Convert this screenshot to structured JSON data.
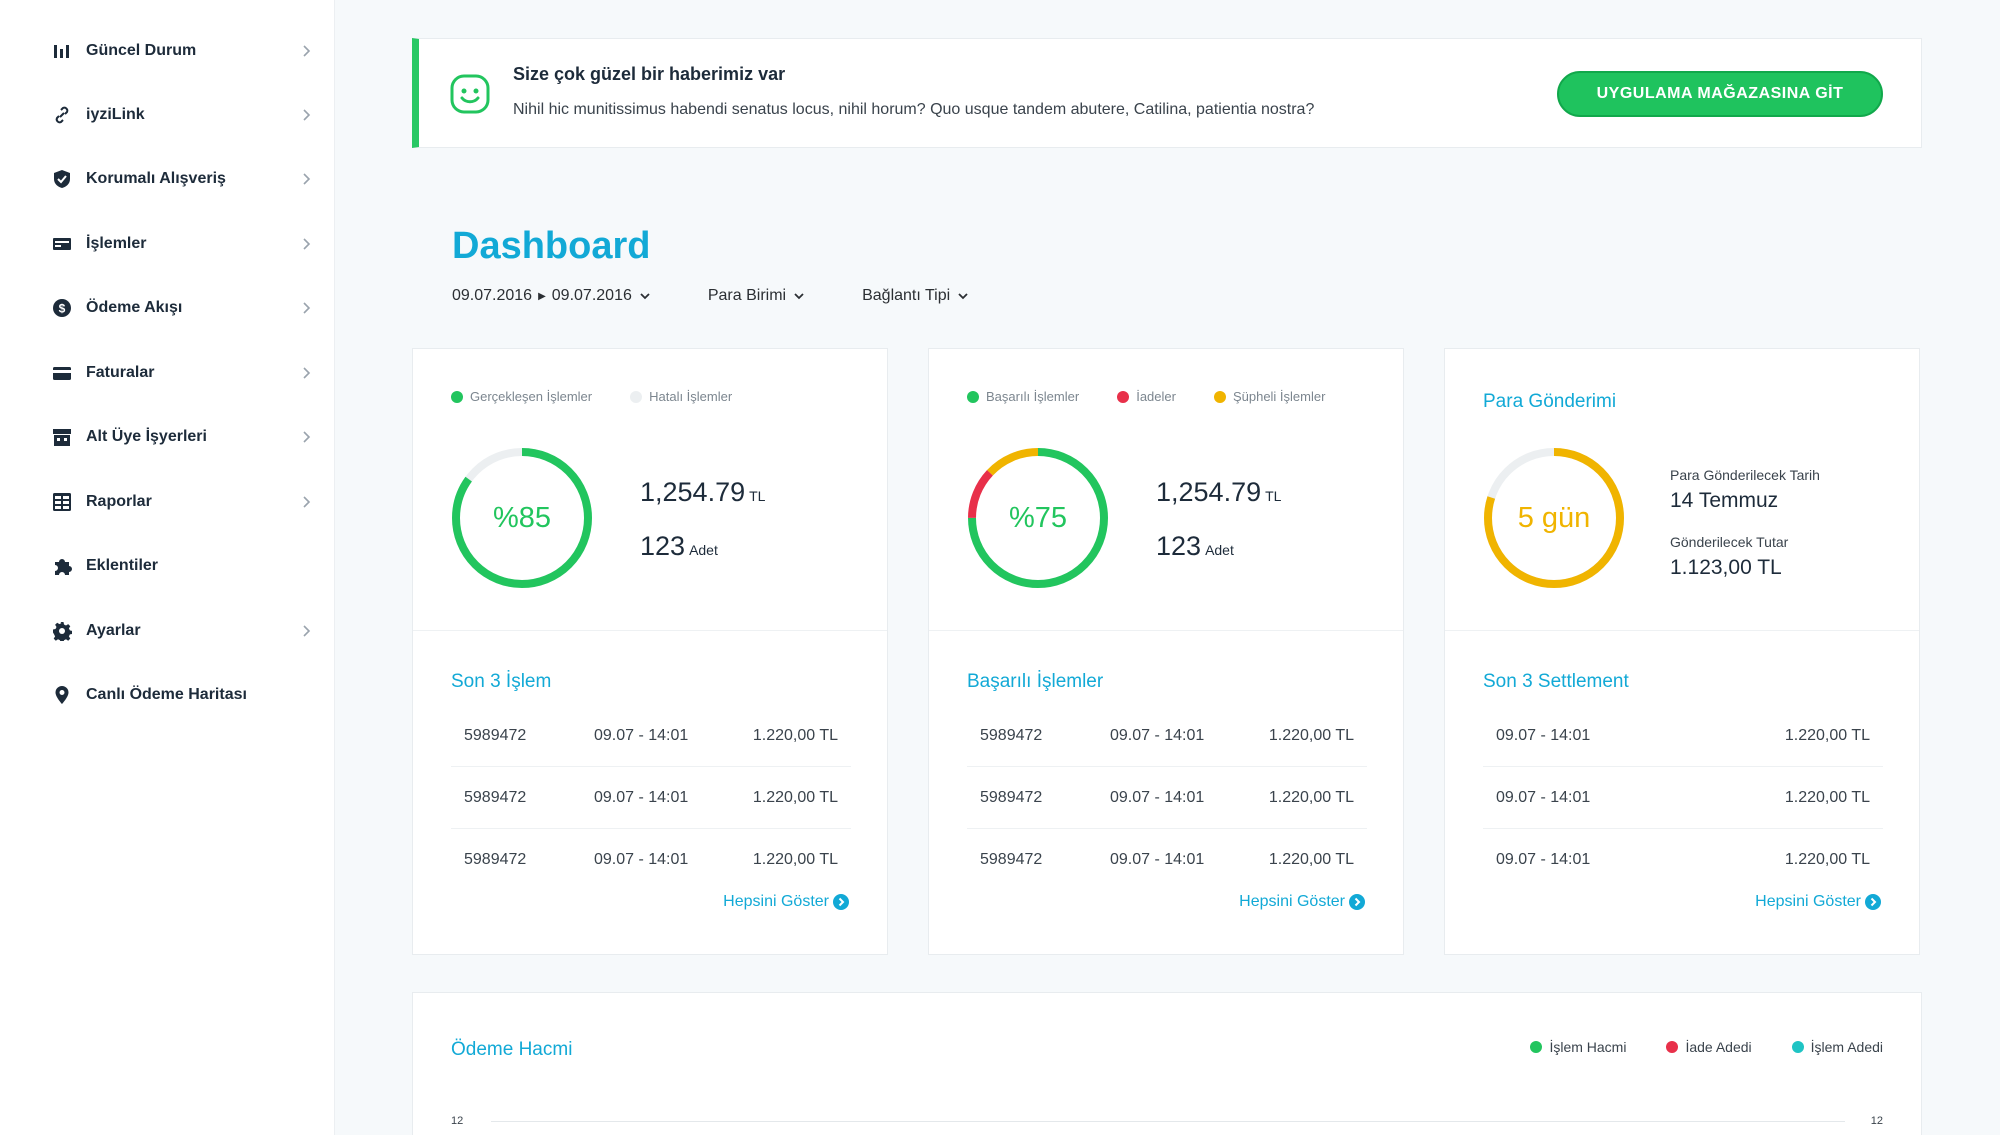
{
  "sidebar": {
    "items": [
      {
        "label": "Güncel Durum",
        "icon": "bar-chart-icon",
        "chevron": true
      },
      {
        "label": "iyziLink",
        "icon": "link-icon",
        "chevron": true
      },
      {
        "label": "Korumalı Alışveriş",
        "icon": "shield-icon",
        "chevron": true
      },
      {
        "label": "İşlemler",
        "icon": "transactions-icon",
        "chevron": true
      },
      {
        "label": "Ödeme Akışı",
        "icon": "coin-icon",
        "chevron": true
      },
      {
        "label": "Faturalar",
        "icon": "card-icon",
        "chevron": true
      },
      {
        "label": "Alt Üye İşyerleri",
        "icon": "store-icon",
        "chevron": true
      },
      {
        "label": "Raporlar",
        "icon": "table-icon",
        "chevron": true
      },
      {
        "label": "Eklentiler",
        "icon": "puzzle-icon",
        "chevron": false
      },
      {
        "label": "Ayarlar",
        "icon": "gear-icon",
        "chevron": true
      },
      {
        "label": "Canlı Ödeme Haritası",
        "icon": "map-pin-icon",
        "chevron": false
      }
    ]
  },
  "banner": {
    "title": "Size çok güzel bir haberimiz var",
    "text": "Nihil hic munitissimus habendi senatus locus, nihil horum? Quo usque tandem abutere, Catilina, patientia nostra?",
    "button": "UYGULAMA MAĞAZASINA GİT",
    "icon": "smiley-icon"
  },
  "page": {
    "title": "Dashboard",
    "date_from": "09.07.2016",
    "date_to": "09.07.2016",
    "currency_filter": "Para Birimi",
    "connection_filter": "Bağlantı Tipi"
  },
  "colors": {
    "accent": "#12a9d6",
    "green": "#22c55e",
    "red": "#e8304a",
    "yellow": "#f0b400",
    "teal": "#1fc4c4",
    "light_gray": "#eceff1"
  },
  "cards": {
    "card1": {
      "legend": [
        {
          "label": "Gerçekleşen İşlemler",
          "color": "#22c55e"
        },
        {
          "label": "Hatalı İşlemler",
          "color": "#eceff1"
        }
      ],
      "ring_label": "%85",
      "ring_percent": 85,
      "amount": "1,254.79",
      "amount_unit": "TL",
      "count": "123",
      "count_unit": "Adet",
      "section_title": "Son 3 İşlem",
      "rows": [
        {
          "id": "5989472",
          "time": "09.07 - 14:01",
          "amount": "1.220,00 TL"
        },
        {
          "id": "5989472",
          "time": "09.07 - 14:01",
          "amount": "1.220,00 TL"
        },
        {
          "id": "5989472",
          "time": "09.07 - 14:01",
          "amount": "1.220,00 TL"
        }
      ],
      "show_all": "Hepsini Göster"
    },
    "card2": {
      "legend": [
        {
          "label": "Başarılı İşlemler",
          "color": "#22c55e"
        },
        {
          "label": "İadeler",
          "color": "#e8304a"
        },
        {
          "label": "Şüpheli İşlemler",
          "color": "#f0b400"
        }
      ],
      "ring_label": "%75",
      "ring_segments": [
        75,
        12,
        13
      ],
      "amount": "1,254.79",
      "amount_unit": "TL",
      "count": "123",
      "count_unit": "Adet",
      "section_title": "Başarılı İşlemler",
      "rows": [
        {
          "id": "5989472",
          "time": "09.07 - 14:01",
          "amount": "1.220,00 TL"
        },
        {
          "id": "5989472",
          "time": "09.07 - 14:01",
          "amount": "1.220,00 TL"
        },
        {
          "id": "5989472",
          "time": "09.07 - 14:01",
          "amount": "1.220,00 TL"
        }
      ],
      "show_all": "Hepsini Göster"
    },
    "card3": {
      "title": "Para Gönderimi",
      "ring_label": "5 gün",
      "ring_percent": 80,
      "date_label": "Para Gönderilecek Tarih",
      "date_value": "14 Temmuz",
      "amount_label": "Gönderilecek Tutar",
      "amount_value": "1.123,00 TL",
      "section_title": "Son 3 Settlement",
      "rows": [
        {
          "time": "09.07 - 14:01",
          "amount": "1.220,00 TL"
        },
        {
          "time": "09.07 - 14:01",
          "amount": "1.220,00 TL"
        },
        {
          "time": "09.07 - 14:01",
          "amount": "1.220,00 TL"
        }
      ],
      "show_all": "Hepsini Göster"
    }
  },
  "volume": {
    "title": "Ödeme Hacmi",
    "legend": [
      {
        "label": "İşlem Hacmi",
        "color": "#22c55e"
      },
      {
        "label": "İade Adedi",
        "color": "#e8304a"
      },
      {
        "label": "İşlem Adedi",
        "color": "#1fc4c4"
      }
    ],
    "axis_left": "12",
    "axis_right": "12"
  }
}
